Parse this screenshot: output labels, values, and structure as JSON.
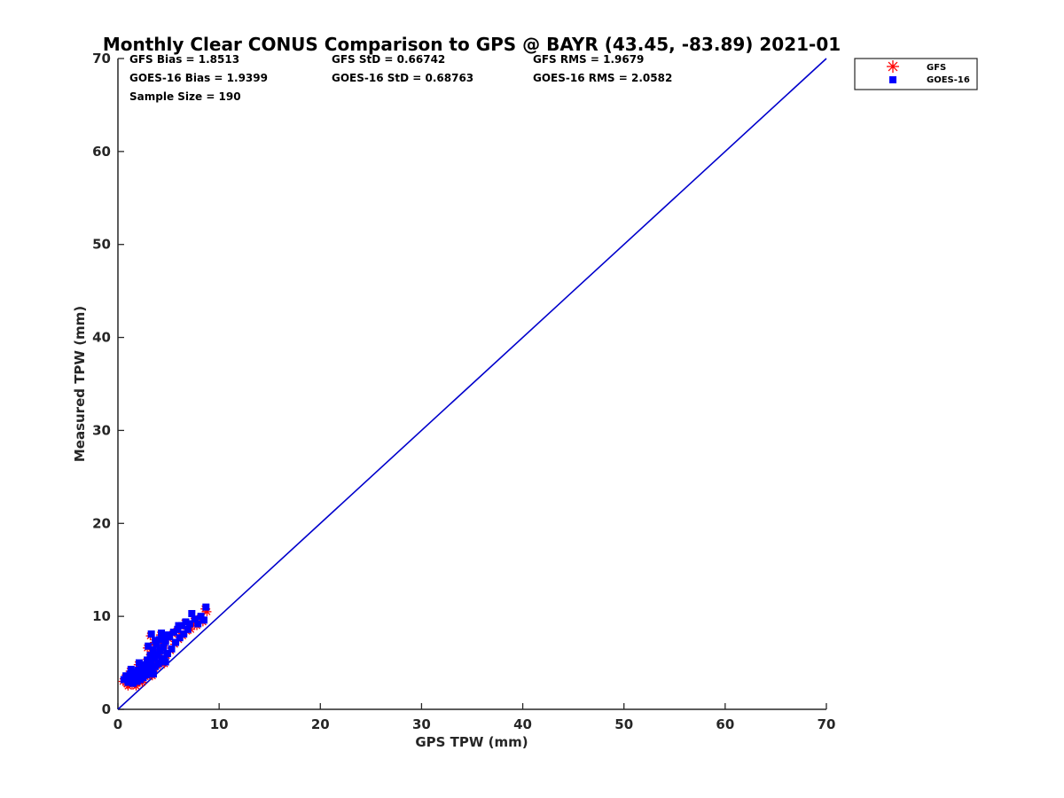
{
  "chart_data": {
    "type": "scatter",
    "title": "Monthly Clear CONUS Comparison to GPS @ BAYR (43.45, -83.89) 2021-01",
    "xlabel": "GPS TPW (mm)",
    "ylabel": "Measured TPW (mm)",
    "xlim": [
      0,
      70
    ],
    "ylim": [
      0,
      70
    ],
    "x_ticks": [
      "0",
      "10",
      "20",
      "30",
      "40",
      "50",
      "60",
      "70"
    ],
    "y_ticks": [
      "0",
      "10",
      "20",
      "30",
      "40",
      "50",
      "60",
      "70"
    ],
    "grid": false,
    "legend_position": "outside top-right",
    "stats": {
      "gfs_bias": "GFS Bias = 1.8513",
      "gfs_std": "GFS StD = 0.66742",
      "gfs_rms": "GFS RMS = 1.9679",
      "goes_bias": "GOES-16 Bias = 1.9399",
      "goes_std": "GOES-16 StD = 0.68763",
      "goes_rms": "GOES-16 RMS = 2.0582",
      "sample_size": "Sample Size = 190"
    },
    "reference_line": {
      "x": [
        0,
        70
      ],
      "y": [
        0,
        70
      ],
      "color": "#0000cc"
    },
    "series": [
      {
        "name": "GFS",
        "marker": "asterisk",
        "color": "#ff0000",
        "points": [
          [
            0.5,
            3.0
          ],
          [
            0.7,
            3.4
          ],
          [
            0.9,
            2.7
          ],
          [
            1.0,
            3.2
          ],
          [
            1.1,
            3.6
          ],
          [
            1.2,
            2.9
          ],
          [
            1.3,
            3.3
          ],
          [
            1.4,
            2.6
          ],
          [
            1.5,
            3.8
          ],
          [
            1.6,
            3.1
          ],
          [
            1.7,
            3.5
          ],
          [
            1.8,
            2.8
          ],
          [
            1.9,
            4.0
          ],
          [
            2.0,
            3.4
          ],
          [
            2.1,
            3.0
          ],
          [
            2.2,
            4.3
          ],
          [
            2.3,
            3.7
          ],
          [
            2.4,
            3.2
          ],
          [
            2.5,
            4.6
          ],
          [
            2.6,
            4.0
          ],
          [
            2.7,
            3.5
          ],
          [
            2.8,
            5.1
          ],
          [
            2.9,
            4.4
          ],
          [
            3.0,
            3.8
          ],
          [
            3.1,
            5.6
          ],
          [
            3.2,
            4.8
          ],
          [
            3.3,
            4.1
          ],
          [
            3.4,
            6.2
          ],
          [
            3.5,
            5.3
          ],
          [
            3.6,
            4.4
          ],
          [
            3.7,
            6.9
          ],
          [
            3.8,
            5.7
          ],
          [
            3.9,
            4.7
          ],
          [
            4.0,
            7.4
          ],
          [
            4.1,
            6.1
          ],
          [
            4.2,
            5.0
          ],
          [
            4.3,
            7.8
          ],
          [
            4.4,
            6.5
          ],
          [
            4.5,
            5.3
          ],
          [
            4.6,
            7.1
          ],
          [
            4.8,
            5.8
          ],
          [
            5.0,
            7.6
          ],
          [
            5.2,
            6.3
          ],
          [
            5.4,
            8.1
          ],
          [
            5.6,
            7.0
          ],
          [
            5.8,
            8.4
          ],
          [
            6.0,
            7.5
          ],
          [
            6.2,
            8.9
          ],
          [
            6.4,
            7.9
          ],
          [
            6.6,
            9.3
          ],
          [
            6.8,
            8.4
          ],
          [
            7.0,
            9.1
          ],
          [
            7.2,
            8.6
          ],
          [
            7.5,
            9.5
          ],
          [
            7.8,
            9.0
          ],
          [
            8.1,
            9.8
          ],
          [
            8.4,
            9.4
          ],
          [
            8.6,
            10.8
          ],
          [
            8.8,
            10.5
          ],
          [
            3.2,
            7.9
          ],
          [
            2.9,
            6.6
          ],
          [
            3.6,
            7.2
          ],
          [
            4.2,
            8.0
          ],
          [
            1.2,
            4.1
          ],
          [
            2.0,
            4.8
          ],
          [
            1.0,
            2.5
          ],
          [
            1.8,
            2.5
          ],
          [
            2.4,
            2.9
          ],
          [
            3.4,
            3.6
          ],
          [
            4.6,
            4.9
          ]
        ]
      },
      {
        "name": "GOES-16",
        "marker": "square",
        "color": "#0000ff",
        "points": [
          [
            0.6,
            3.2
          ],
          [
            0.8,
            3.6
          ],
          [
            1.0,
            2.9
          ],
          [
            1.1,
            3.4
          ],
          [
            1.2,
            3.8
          ],
          [
            1.3,
            3.1
          ],
          [
            1.4,
            3.5
          ],
          [
            1.5,
            2.8
          ],
          [
            1.6,
            4.0
          ],
          [
            1.7,
            3.3
          ],
          [
            1.8,
            3.7
          ],
          [
            1.9,
            3.0
          ],
          [
            2.0,
            4.2
          ],
          [
            2.1,
            3.6
          ],
          [
            2.2,
            3.2
          ],
          [
            2.3,
            4.5
          ],
          [
            2.4,
            3.9
          ],
          [
            2.5,
            3.4
          ],
          [
            2.6,
            4.8
          ],
          [
            2.7,
            4.2
          ],
          [
            2.8,
            3.7
          ],
          [
            2.9,
            5.3
          ],
          [
            3.0,
            4.6
          ],
          [
            3.1,
            4.0
          ],
          [
            3.2,
            5.8
          ],
          [
            3.3,
            5.0
          ],
          [
            3.4,
            4.3
          ],
          [
            3.5,
            6.4
          ],
          [
            3.6,
            5.5
          ],
          [
            3.7,
            4.6
          ],
          [
            3.8,
            7.0
          ],
          [
            3.9,
            5.9
          ],
          [
            4.0,
            4.9
          ],
          [
            4.1,
            7.5
          ],
          [
            4.2,
            6.3
          ],
          [
            4.3,
            5.2
          ],
          [
            4.4,
            7.9
          ],
          [
            4.5,
            6.7
          ],
          [
            4.6,
            5.5
          ],
          [
            4.7,
            7.3
          ],
          [
            4.9,
            6.0
          ],
          [
            5.1,
            7.8
          ],
          [
            5.3,
            6.5
          ],
          [
            5.5,
            8.3
          ],
          [
            5.7,
            7.2
          ],
          [
            5.9,
            8.6
          ],
          [
            6.1,
            7.7
          ],
          [
            6.3,
            9.0
          ],
          [
            6.5,
            8.1
          ],
          [
            6.7,
            9.4
          ],
          [
            6.9,
            8.6
          ],
          [
            7.1,
            9.2
          ],
          [
            7.3,
            10.3
          ],
          [
            7.6,
            9.7
          ],
          [
            7.9,
            9.2
          ],
          [
            8.2,
            10.0
          ],
          [
            8.5,
            9.6
          ],
          [
            8.7,
            11.0
          ],
          [
            3.3,
            8.1
          ],
          [
            3.0,
            6.8
          ],
          [
            3.7,
            7.4
          ],
          [
            4.3,
            8.2
          ],
          [
            1.3,
            4.3
          ],
          [
            2.1,
            5.0
          ],
          [
            3.5,
            3.8
          ],
          [
            4.7,
            5.1
          ],
          [
            5.0,
            8.0
          ],
          [
            6.0,
            9.0
          ]
        ]
      }
    ]
  }
}
